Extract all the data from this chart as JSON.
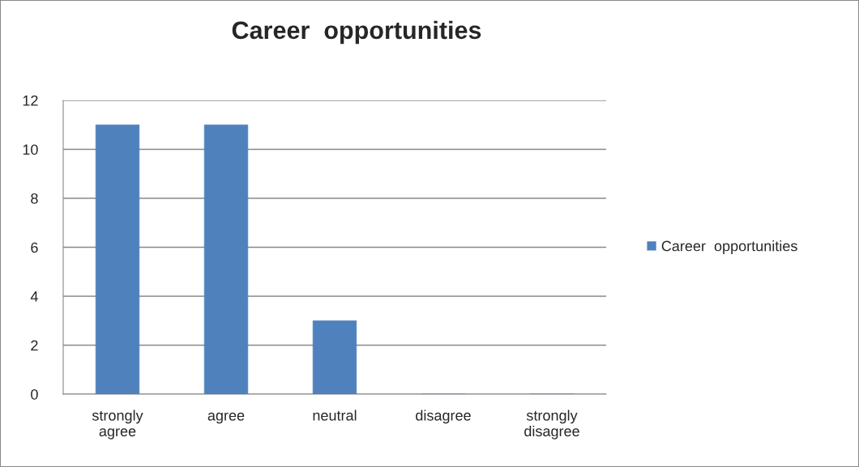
{
  "chart_data": {
    "type": "bar",
    "title": "Career  opportunities",
    "categories": [
      "strongly agree",
      "agree",
      "neutral",
      "disagree",
      "strongly disagree"
    ],
    "series": [
      {
        "name": "Career  opportunities",
        "color": "#4f81bd",
        "values": [
          11,
          11,
          3,
          0,
          0
        ]
      }
    ],
    "ylim": [
      0,
      12
    ],
    "yticks": [
      0,
      2,
      4,
      6,
      8,
      10,
      12
    ],
    "grid": "y",
    "legend": "right"
  }
}
